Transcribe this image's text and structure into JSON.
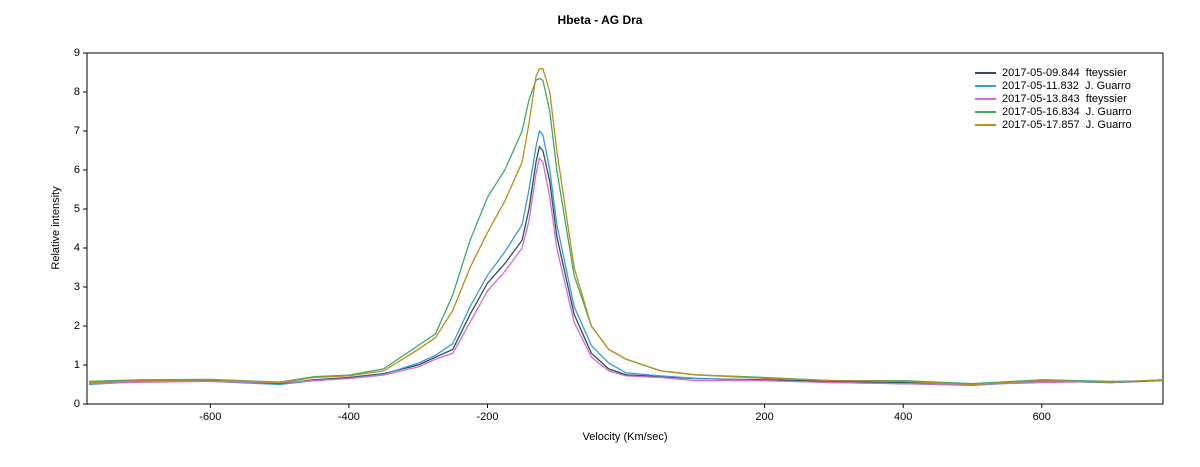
{
  "chart_data": {
    "type": "line",
    "title": "Hbeta - AG Dra",
    "xlabel": "Velocity (Km/sec)",
    "ylabel": "Relative intensity",
    "x": [
      -775,
      -700,
      -600,
      -500,
      -450,
      -400,
      -350,
      -300,
      -275,
      -250,
      -225,
      -200,
      -175,
      -150,
      -140,
      -130,
      -125,
      -120,
      -110,
      -100,
      -75,
      -50,
      -25,
      0,
      50,
      100,
      200,
      300,
      400,
      500,
      600,
      700,
      775
    ],
    "series": [
      {
        "name": "2017-05-09.844  fteyssier",
        "color": "#2f4f57",
        "values": [
          0.55,
          0.6,
          0.6,
          0.52,
          0.62,
          0.68,
          0.78,
          1.0,
          1.2,
          1.4,
          2.3,
          3.1,
          3.6,
          4.2,
          5.0,
          6.2,
          6.6,
          6.5,
          5.7,
          4.3,
          2.3,
          1.3,
          0.9,
          0.75,
          0.7,
          0.65,
          0.62,
          0.58,
          0.55,
          0.5,
          0.6,
          0.55,
          0.6
        ]
      },
      {
        "name": "2017-05-11.832  J. Guarro",
        "color": "#3a9ad9",
        "values": [
          0.5,
          0.58,
          0.58,
          0.5,
          0.6,
          0.66,
          0.76,
          1.05,
          1.25,
          1.55,
          2.5,
          3.3,
          3.9,
          4.6,
          5.5,
          6.6,
          7.0,
          6.9,
          6.0,
          4.6,
          2.5,
          1.5,
          1.05,
          0.8,
          0.72,
          0.66,
          0.6,
          0.55,
          0.52,
          0.48,
          0.58,
          0.55,
          0.62
        ]
      },
      {
        "name": "2017-05-13.843  fteyssier",
        "color": "#d46ad4",
        "values": [
          0.52,
          0.56,
          0.58,
          0.55,
          0.6,
          0.65,
          0.74,
          0.95,
          1.15,
          1.3,
          2.1,
          2.9,
          3.4,
          4.0,
          4.7,
          5.9,
          6.3,
          6.2,
          5.3,
          4.0,
          2.1,
          1.2,
          0.85,
          0.72,
          0.68,
          0.6,
          0.6,
          0.55,
          0.52,
          0.5,
          0.55,
          0.58,
          0.6
        ]
      },
      {
        "name": "2017-05-16.834  J. Guarro",
        "color": "#3aaa6a",
        "values": [
          0.58,
          0.62,
          0.63,
          0.56,
          0.7,
          0.74,
          0.9,
          1.5,
          1.8,
          2.8,
          4.2,
          5.3,
          6.0,
          7.0,
          7.8,
          8.3,
          8.35,
          8.3,
          7.5,
          6.0,
          3.3,
          2.0,
          1.4,
          1.15,
          0.85,
          0.75,
          0.68,
          0.6,
          0.6,
          0.52,
          0.62,
          0.58,
          0.6
        ]
      },
      {
        "name": "2017-05-17.857  J. Guarro",
        "color": "#b8901a",
        "values": [
          0.55,
          0.6,
          0.62,
          0.55,
          0.68,
          0.72,
          0.85,
          1.4,
          1.7,
          2.4,
          3.5,
          4.4,
          5.2,
          6.2,
          7.2,
          8.4,
          8.6,
          8.6,
          8.0,
          6.5,
          3.5,
          2.0,
          1.4,
          1.15,
          0.85,
          0.75,
          0.66,
          0.6,
          0.58,
          0.5,
          0.6,
          0.56,
          0.62
        ]
      }
    ],
    "xlim": [
      -778,
      775
    ],
    "xticks": [
      -600,
      -400,
      -200,
      200,
      400,
      600
    ],
    "ylim": [
      0,
      9
    ],
    "yticks": [
      0,
      1,
      2,
      3,
      4,
      5,
      6,
      7,
      8,
      9
    ],
    "legend": "top-right"
  }
}
